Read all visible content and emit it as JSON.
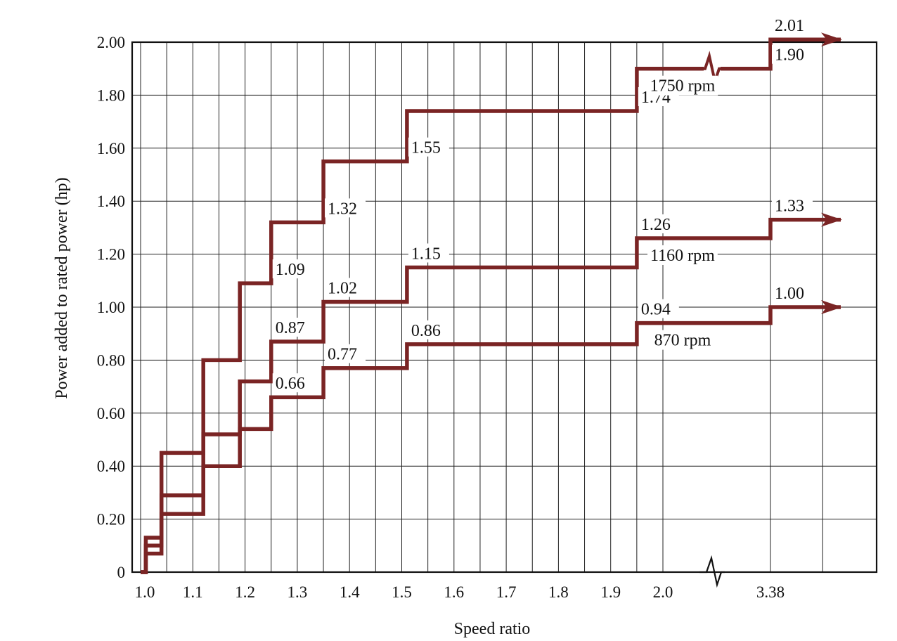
{
  "chart_data": {
    "type": "line",
    "title": "",
    "xlabel": "Speed ratio",
    "ylabel": "Power added to rated power (hp)",
    "x_ticks": [
      "1.0",
      "1.1",
      "1.2",
      "1.3",
      "1.4",
      "1.5",
      "1.6",
      "1.7",
      "1.8",
      "1.9",
      "2.0",
      "3.38"
    ],
    "y_ticks": [
      "0",
      "0.20",
      "0.40",
      "0.60",
      "0.80",
      "1.00",
      "1.20",
      "1.40",
      "1.60",
      "1.80",
      "2.00"
    ],
    "ylim": [
      0,
      2.0
    ],
    "axis_break": "between 2.0 and 3.38",
    "grid": true,
    "colors": {
      "series": "#7a2424",
      "grid": "#222222"
    },
    "series": [
      {
        "name": "1750 rpm",
        "steps": [
          {
            "x_start": 1.0,
            "x_end": 1.01,
            "y": 0
          },
          {
            "x_start": 1.01,
            "x_end": 1.04,
            "y": 0.13
          },
          {
            "x_start": 1.04,
            "x_end": 1.12,
            "y": 0.45
          },
          {
            "x_start": 1.12,
            "x_end": 1.19,
            "y": 0.8
          },
          {
            "x_start": 1.19,
            "x_end": 1.25,
            "y": 1.09
          },
          {
            "x_start": 1.25,
            "x_end": 1.35,
            "y": 1.32
          },
          {
            "x_start": 1.35,
            "x_end": 1.51,
            "y": 1.55
          },
          {
            "x_start": 1.51,
            "x_end": 1.95,
            "y": 1.74
          },
          {
            "x_start": 1.95,
            "x_end": 3.38,
            "y": 1.9
          },
          {
            "x_start": 3.38,
            "x_end": null,
            "y": 2.01
          }
        ]
      },
      {
        "name": "1160 rpm",
        "steps": [
          {
            "x_start": 1.0,
            "x_end": 1.01,
            "y": 0
          },
          {
            "x_start": 1.01,
            "x_end": 1.04,
            "y": 0.1
          },
          {
            "x_start": 1.04,
            "x_end": 1.12,
            "y": 0.29
          },
          {
            "x_start": 1.12,
            "x_end": 1.19,
            "y": 0.52
          },
          {
            "x_start": 1.19,
            "x_end": 1.25,
            "y": 0.72
          },
          {
            "x_start": 1.25,
            "x_end": 1.35,
            "y": 0.87
          },
          {
            "x_start": 1.35,
            "x_end": 1.51,
            "y": 1.02
          },
          {
            "x_start": 1.51,
            "x_end": 1.95,
            "y": 1.15
          },
          {
            "x_start": 1.95,
            "x_end": 3.38,
            "y": 1.26
          },
          {
            "x_start": 3.38,
            "x_end": null,
            "y": 1.33
          }
        ]
      },
      {
        "name": "870 rpm",
        "steps": [
          {
            "x_start": 1.0,
            "x_end": 1.01,
            "y": 0
          },
          {
            "x_start": 1.01,
            "x_end": 1.04,
            "y": 0.07
          },
          {
            "x_start": 1.04,
            "x_end": 1.12,
            "y": 0.22
          },
          {
            "x_start": 1.12,
            "x_end": 1.19,
            "y": 0.4
          },
          {
            "x_start": 1.19,
            "x_end": 1.25,
            "y": 0.54
          },
          {
            "x_start": 1.25,
            "x_end": 1.35,
            "y": 0.66
          },
          {
            "x_start": 1.35,
            "x_end": 1.51,
            "y": 0.77
          },
          {
            "x_start": 1.51,
            "x_end": 1.95,
            "y": 0.86
          },
          {
            "x_start": 1.95,
            "x_end": 3.38,
            "y": 0.94
          },
          {
            "x_start": 3.38,
            "x_end": null,
            "y": 1.0
          }
        ]
      }
    ],
    "data_labels": [
      {
        "series": "1750 rpm",
        "x": 1.25,
        "y": 1.09,
        "text": "1.09"
      },
      {
        "series": "1750 rpm",
        "x": 1.35,
        "y": 1.32,
        "text": "1.32"
      },
      {
        "series": "1750 rpm",
        "x": 1.51,
        "y": 1.55,
        "text": "1.55"
      },
      {
        "series": "1750 rpm",
        "x": 1.95,
        "y": 1.74,
        "text": "1.74"
      },
      {
        "series": "1750 rpm",
        "x": 3.38,
        "y": 1.9,
        "text": "1.90"
      },
      {
        "series": "1750 rpm",
        "x": 3.38,
        "y": 2.01,
        "text": "2.01"
      },
      {
        "series": "1160 rpm",
        "x": 1.25,
        "y": 0.87,
        "text": "0.87"
      },
      {
        "series": "1160 rpm",
        "x": 1.35,
        "y": 1.02,
        "text": "1.02"
      },
      {
        "series": "1160 rpm",
        "x": 1.51,
        "y": 1.15,
        "text": "1.15"
      },
      {
        "series": "1160 rpm",
        "x": 1.95,
        "y": 1.26,
        "text": "1.26"
      },
      {
        "series": "1160 rpm",
        "x": 3.38,
        "y": 1.33,
        "text": "1.33"
      },
      {
        "series": "870 rpm",
        "x": 1.25,
        "y": 0.66,
        "text": "0.66"
      },
      {
        "series": "870 rpm",
        "x": 1.35,
        "y": 0.77,
        "text": "0.77"
      },
      {
        "series": "870 rpm",
        "x": 1.51,
        "y": 0.86,
        "text": "0.86"
      },
      {
        "series": "870 rpm",
        "x": 1.95,
        "y": 0.94,
        "text": "0.94"
      },
      {
        "series": "870 rpm",
        "x": 3.38,
        "y": 1.0,
        "text": "1.00"
      }
    ]
  }
}
